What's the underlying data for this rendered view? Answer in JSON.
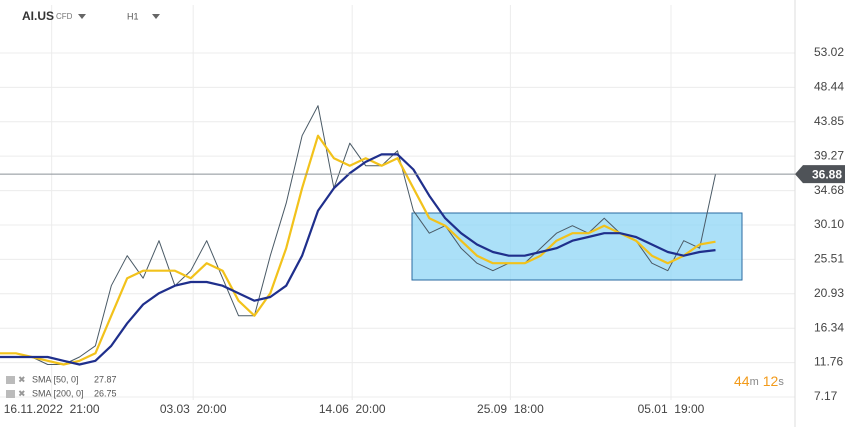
{
  "symbol": "AI.US",
  "instrument_type": "CFD",
  "interval": "H1",
  "countdown": [
    "44",
    "m",
    "12",
    "s"
  ],
  "chart_data": {
    "type": "line",
    "x": [
      0,
      2,
      4,
      6,
      8,
      10,
      12,
      14,
      16,
      18,
      20,
      22,
      24,
      26,
      28,
      30,
      32,
      34,
      36,
      38,
      40,
      42,
      44,
      46,
      48,
      50,
      52,
      54,
      56,
      58,
      60,
      62,
      64,
      66,
      68,
      70,
      72,
      74,
      76,
      78,
      80,
      82,
      84,
      86,
      88,
      90
    ],
    "series": [
      {
        "color": "#4a5a66",
        "values": [
          13,
          13,
          12.5,
          11.5,
          11.5,
          12.5,
          14,
          22,
          26,
          23,
          28,
          22,
          24,
          28,
          23,
          18,
          18,
          26,
          33,
          42,
          46,
          35,
          41,
          38,
          38,
          40,
          32,
          29,
          30,
          27,
          25,
          24,
          25,
          25,
          27,
          29,
          30,
          29,
          31,
          29,
          28,
          25,
          24,
          28,
          27,
          36.88
        ]
      },
      {
        "name": "SMA [50, 0]",
        "color": "#f2c21b",
        "values": [
          13,
          13,
          12.5,
          12,
          11.5,
          12,
          13,
          18,
          23,
          24,
          24,
          24,
          23,
          25,
          24,
          20,
          18,
          21,
          27,
          35,
          42,
          39,
          38,
          39,
          38,
          39,
          35,
          31,
          30,
          28,
          26,
          25,
          25,
          25,
          26,
          28,
          29,
          29,
          30,
          29,
          28,
          26,
          25,
          26,
          27.5,
          27.87
        ]
      },
      {
        "name": "SMA [200, 0]",
        "color": "#1f2f8c",
        "values": [
          12.5,
          12.5,
          12.5,
          12.5,
          12,
          11.5,
          12,
          14,
          17,
          19.5,
          21,
          22,
          22.5,
          22.5,
          22,
          21,
          20,
          20.5,
          22,
          26,
          32,
          35,
          37,
          38.5,
          39.5,
          39.5,
          37.5,
          34,
          31,
          29,
          27.5,
          26.5,
          26,
          26,
          26.5,
          27,
          28,
          28.5,
          29,
          29,
          28.5,
          27.5,
          26.5,
          26,
          26.5,
          26.75
        ]
      }
    ],
    "xlim": [
      0,
      100
    ],
    "xticks": [
      {
        "value": 6.5,
        "label": "16.11.2022  21:00"
      },
      {
        "value": 24.3,
        "label": "03.03  20:00"
      },
      {
        "value": 44.3,
        "label": "14.06  20:00"
      },
      {
        "value": 64.2,
        "label": "25.09  18:00"
      },
      {
        "value": 84.4,
        "label": "05.01  19:00"
      }
    ],
    "ylim": [
      6.77,
      59.42
    ],
    "yticks": [
      7.17,
      11.76,
      16.34,
      20.93,
      25.51,
      {
        "value": 30.1,
        "label": "30.10"
      },
      34.68,
      39.27,
      43.85,
      48.44,
      53.02
    ],
    "grid": true
  }
}
